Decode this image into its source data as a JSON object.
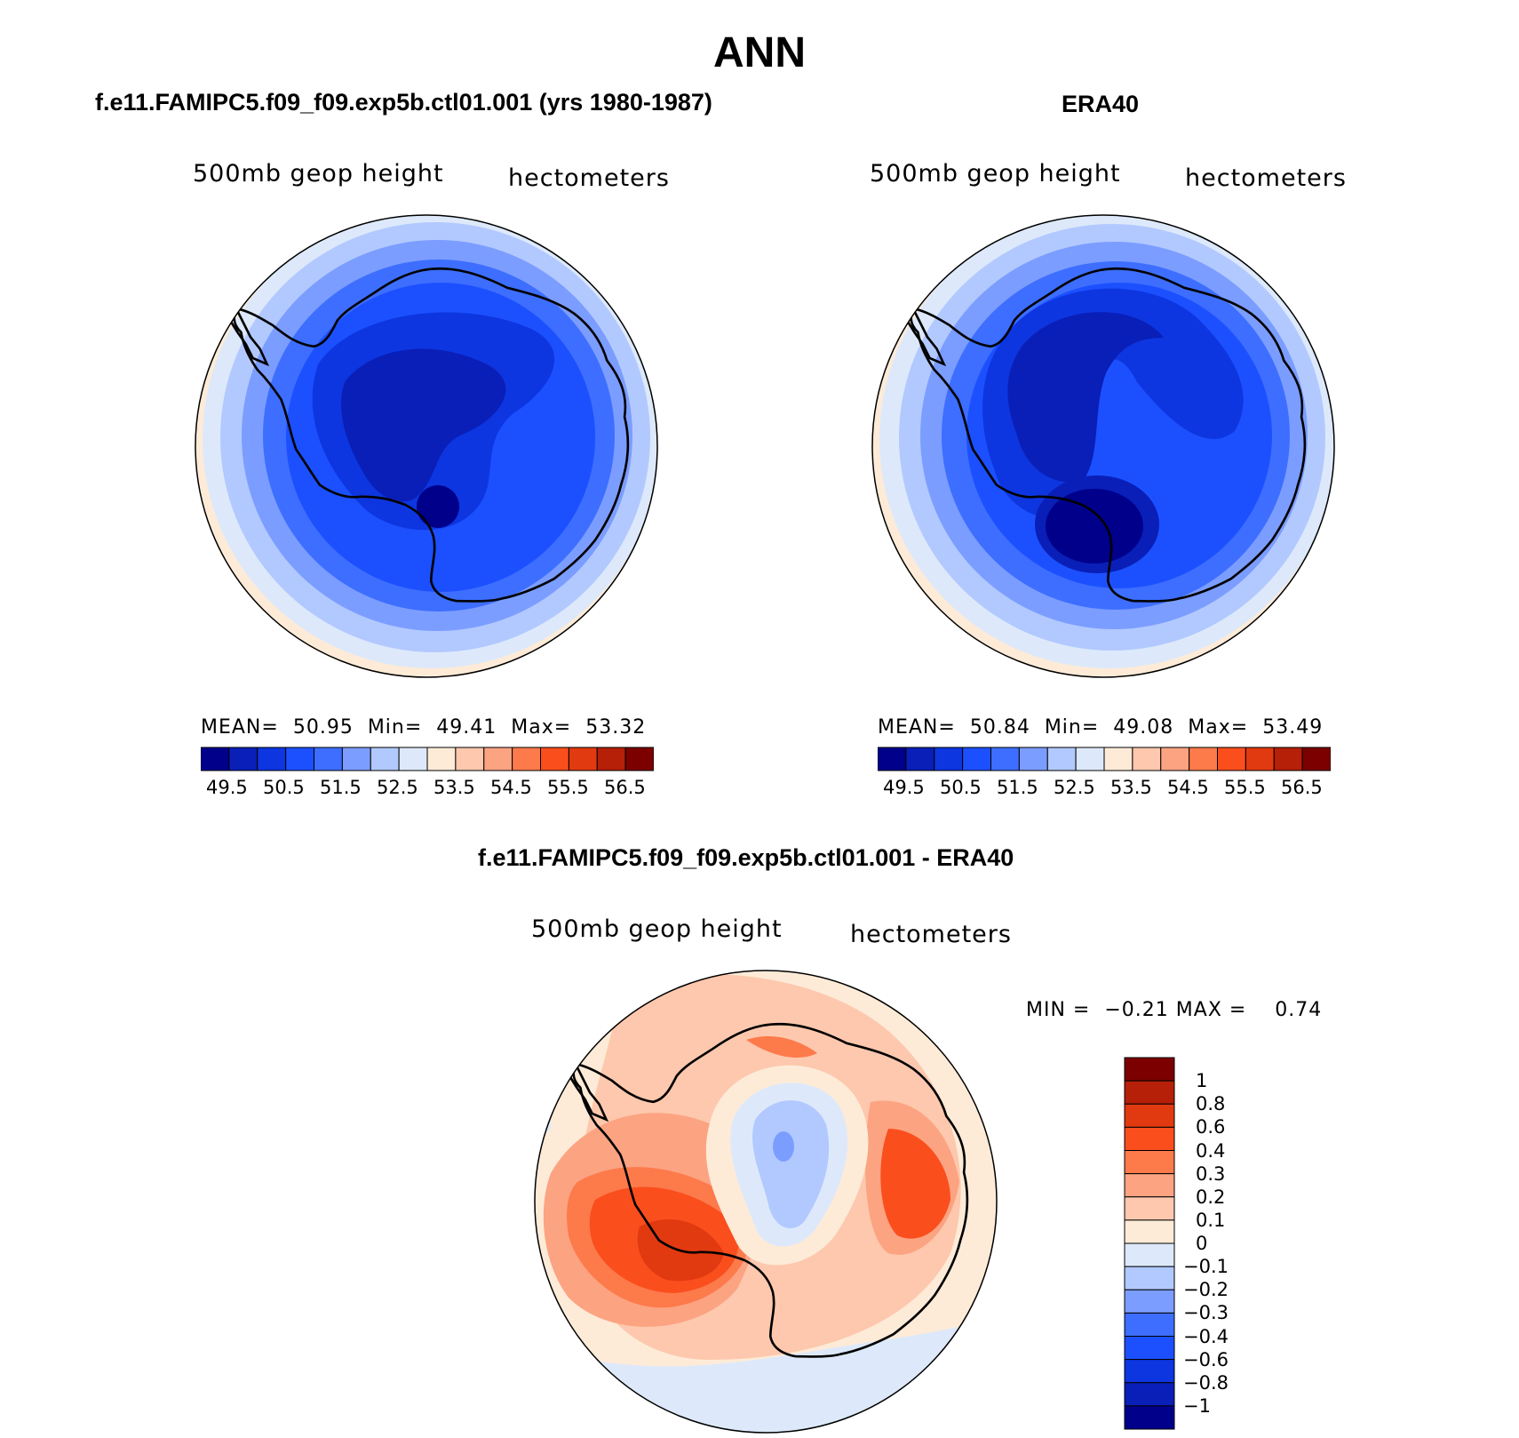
{
  "title": "ANN",
  "colors": {
    "blues": [
      "#00008b",
      "#0a1fb8",
      "#0d36e0",
      "#1c50ff",
      "#3d6eff",
      "#7b9dff",
      "#b2c9ff",
      "#dde9fa"
    ],
    "reds": [
      "#fdebd8",
      "#fdc8ad",
      "#fca382",
      "#fd7a4b",
      "#fb4e1d",
      "#e13a10",
      "#b61f08",
      "#7c0000"
    ]
  },
  "panels": [
    {
      "id": "model",
      "title": "f.e11.FAMIPC5.f09_f09.exp5b.ctl01.001 (yrs 1980-1987)",
      "variable": "500mb geop height",
      "units": "hectometers",
      "stats": {
        "mean_label": "MEAN=",
        "mean": "50.95",
        "min_label": "Min=",
        "min": "49.41",
        "max_label": "Max=",
        "max": "53.32"
      },
      "colorbar_ticks": [
        "49.5",
        "50.5",
        "51.5",
        "52.5",
        "53.5",
        "54.5",
        "55.5",
        "56.5"
      ]
    },
    {
      "id": "obs",
      "title": "ERA40",
      "variable": "500mb geop height",
      "units": "hectometers",
      "stats": {
        "mean_label": "MEAN=",
        "mean": "50.84",
        "min_label": "Min=",
        "min": "49.08",
        "max_label": "Max=",
        "max": "53.49"
      },
      "colorbar_ticks": [
        "49.5",
        "50.5",
        "51.5",
        "52.5",
        "53.5",
        "54.5",
        "55.5",
        "56.5"
      ]
    },
    {
      "id": "diff",
      "title": "f.e11.FAMIPC5.f09_f09.exp5b.ctl01.001 - ERA40",
      "variable": "500mb geop height",
      "units": "hectometers",
      "stats": {
        "min_label": "MIN =",
        "min": "−0.21",
        "max_label": "MAX =",
        "max": "0.74"
      },
      "colorbar_ticks": [
        "1",
        "0.8",
        "0.6",
        "0.4",
        "0.3",
        "0.2",
        "0.1",
        "0",
        "−0.1",
        "−0.2",
        "−0.3",
        "−0.4",
        "−0.6",
        "−0.8",
        "−1"
      ]
    }
  ]
}
